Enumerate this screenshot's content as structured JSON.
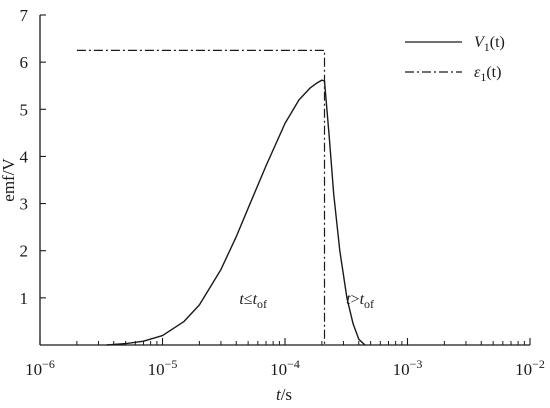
{
  "chart_data": {
    "type": "line",
    "title": "",
    "xlabel": {
      "italic": "t",
      "rest": "/s"
    },
    "ylabel": "emf/V",
    "x_scale": "log",
    "xlim": [
      1e-06,
      0.01
    ],
    "ylim": [
      0,
      7
    ],
    "x_ticks": [
      {
        "value": 1e-06,
        "base": "10",
        "exp": "−6"
      },
      {
        "value": 1e-05,
        "base": "10",
        "exp": "−5"
      },
      {
        "value": 0.0001,
        "base": "10",
        "exp": "−4"
      },
      {
        "value": 0.001,
        "base": "10",
        "exp": "−3"
      },
      {
        "value": 0.01,
        "base": "10",
        "exp": "−2"
      }
    ],
    "y_ticks": [
      "1",
      "2",
      "3",
      "4",
      "5",
      "6",
      "7"
    ],
    "grid": false,
    "legend_position": "top-right",
    "series": [
      {
        "name": "V1(t)",
        "legend": {
          "letter": "V",
          "sub": "1",
          "arg": "(t)"
        },
        "style": "solid",
        "x": [
          3.5e-06,
          5e-06,
          7e-06,
          1e-05,
          1.5e-05,
          2e-05,
          3e-05,
          4e-05,
          5e-05,
          7e-05,
          0.0001,
          0.00013,
          0.00016,
          0.00018,
          0.0002,
          0.00021,
          0.00023,
          0.00025,
          0.00028,
          0.00032,
          0.00036,
          0.0004,
          0.00045
        ],
        "y": [
          0.0,
          0.03,
          0.08,
          0.2,
          0.5,
          0.85,
          1.6,
          2.3,
          2.9,
          3.8,
          4.7,
          5.2,
          5.45,
          5.55,
          5.62,
          5.6,
          4.4,
          3.2,
          2.0,
          1.0,
          0.45,
          0.12,
          0.0
        ]
      },
      {
        "name": "ε1(t)",
        "legend": {
          "letter": "ε",
          "sub": "1",
          "arg": "(t)"
        },
        "style": "dash-dot",
        "x": [
          2e-06,
          0.00021,
          0.00021
        ],
        "y": [
          6.25,
          6.25,
          0.0
        ]
      }
    ],
    "annotations": [
      {
        "var": "t",
        "op": "≤",
        "t": "t",
        "sub": "of",
        "x": 5.5e-05,
        "y": 1.0
      },
      {
        "var": "t",
        "op": ">",
        "t": "t",
        "sub": "of",
        "x": 0.00041,
        "y": 1.0
      }
    ]
  }
}
